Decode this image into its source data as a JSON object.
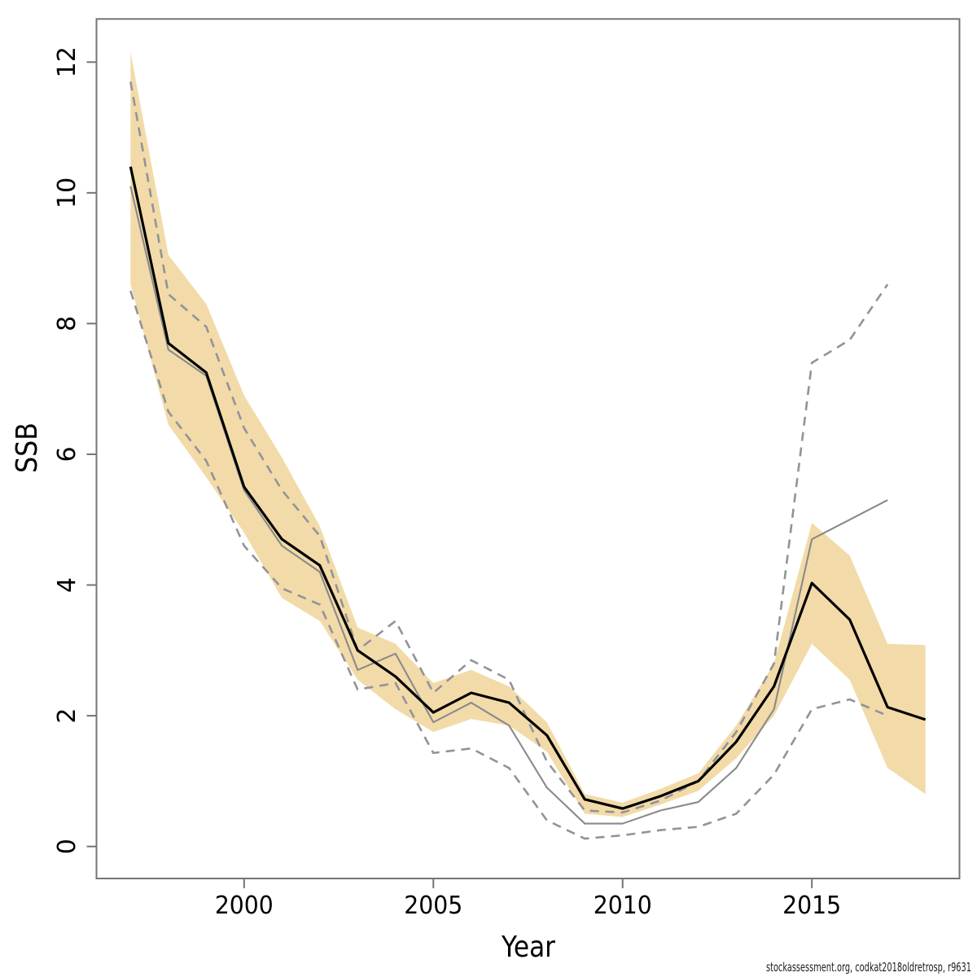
{
  "page": {
    "background": "#ffffff"
  },
  "footer": {
    "text": "stockassessment.org, codkat2018oldretrosp, r9631"
  },
  "chart_data": {
    "type": "line",
    "title": "",
    "xlabel": "Year",
    "ylabel": "SSB",
    "grid": false,
    "legend": "none",
    "x_ticks": [
      2000,
      2005,
      2010,
      2015
    ],
    "y_ticks": [
      0,
      2,
      4,
      6,
      8,
      10,
      12
    ],
    "xlim": [
      1996.1,
      2018.9
    ],
    "ylim": [
      -0.49,
      12.66
    ],
    "x": [
      1997,
      1998,
      1999,
      2000,
      2001,
      2002,
      2003,
      2004,
      2005,
      2006,
      2007,
      2008,
      2009,
      2010,
      2011,
      2012,
      2013,
      2014,
      2015,
      2016,
      2017,
      2018
    ],
    "band": {
      "name": "current-assessment-95ci-band",
      "color": "#f2dba8",
      "upper": [
        12.15,
        9.05,
        8.3,
        6.9,
        5.95,
        4.9,
        3.35,
        3.1,
        2.5,
        2.7,
        2.45,
        1.9,
        0.8,
        0.67,
        0.88,
        1.12,
        1.85,
        2.8,
        4.95,
        4.45,
        3.1,
        3.08
      ],
      "lower": [
        8.6,
        6.45,
        5.65,
        4.8,
        3.8,
        3.45,
        2.55,
        2.1,
        1.75,
        1.95,
        1.85,
        1.45,
        0.5,
        0.45,
        0.64,
        0.85,
        1.35,
        2.0,
        3.1,
        2.55,
        1.2,
        0.8
      ]
    },
    "series": [
      {
        "name": "ssb-current-estimate",
        "color": "#000000",
        "style": "solid",
        "width": 3.2,
        "values": [
          10.4,
          7.7,
          7.25,
          5.5,
          4.7,
          4.3,
          3.0,
          2.6,
          2.05,
          2.35,
          2.2,
          1.7,
          0.72,
          0.58,
          0.77,
          1.0,
          1.6,
          2.45,
          4.03,
          3.47,
          2.13,
          1.94
        ]
      },
      {
        "name": "ssb-previous-run",
        "color": "#8a8a8a",
        "style": "solid",
        "width": 2.1,
        "values": [
          10.1,
          7.6,
          7.2,
          5.45,
          4.6,
          4.2,
          2.7,
          2.95,
          1.9,
          2.2,
          1.85,
          0.9,
          0.35,
          0.35,
          0.55,
          0.68,
          1.2,
          2.1,
          4.7,
          5.0,
          5.3,
          null
        ]
      },
      {
        "name": "ssb-previous-run-upper-ci",
        "color": "#92939a",
        "style": "dashed",
        "width": 2.6,
        "values": [
          11.7,
          8.45,
          7.95,
          6.4,
          5.45,
          4.75,
          3.0,
          3.45,
          2.35,
          2.85,
          2.55,
          1.3,
          0.55,
          0.52,
          0.7,
          1.0,
          1.75,
          2.8,
          7.4,
          7.75,
          8.6,
          null
        ]
      },
      {
        "name": "ssb-previous-run-lower-ci",
        "color": "#92939a",
        "style": "dashed",
        "width": 2.6,
        "values": [
          8.5,
          6.65,
          5.9,
          4.6,
          3.95,
          3.7,
          2.4,
          2.5,
          1.43,
          1.5,
          1.2,
          0.4,
          0.12,
          0.17,
          0.25,
          0.3,
          0.5,
          1.1,
          2.1,
          2.25,
          2.0,
          null
        ]
      }
    ],
    "axis": {
      "box_color": "#747474",
      "tick_color": "#747474",
      "label_color": "#000000"
    },
    "footnote": "stockassessment.org, codkat2018oldretrosp, r9631"
  }
}
